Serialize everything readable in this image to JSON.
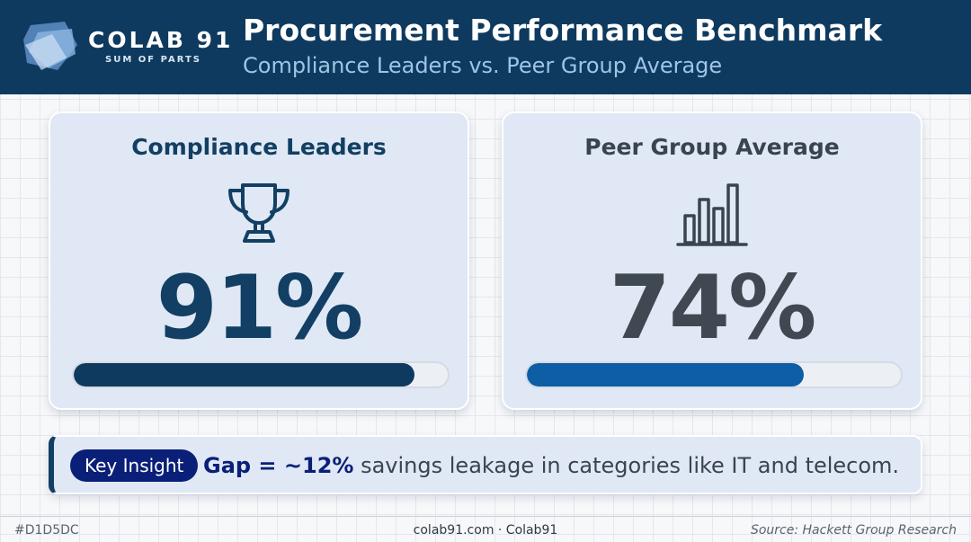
{
  "header": {
    "brand": "COLAB 91",
    "brand_tagline": "SUM OF PARTS",
    "title": "Procurement Performance Benchmark",
    "subtitle": "Compliance Leaders vs. Peer Group Average"
  },
  "cards": [
    {
      "title": "Compliance Leaders",
      "icon": "trophy-icon",
      "value": "91%",
      "progress": 0.91,
      "bar_color": "#0f3a5f"
    },
    {
      "title": "Peer Group Average",
      "icon": "bar-chart-icon",
      "value": "74%",
      "progress": 0.74,
      "bar_color": "#0d5ea5"
    }
  ],
  "insight": {
    "label": "Key Insight",
    "highlight": "Gap = ~12%",
    "text": "savings leakage in categories like IT and telecom."
  },
  "footer": {
    "left": "#D1D5DC",
    "center": "colab91.com · Colab91",
    "right": "Source: Hackett Group Research"
  },
  "colors": {
    "header_bg": "#0e3a5f",
    "card_bg": "#dfe8f4",
    "accent_navy": "#0a1f78"
  }
}
